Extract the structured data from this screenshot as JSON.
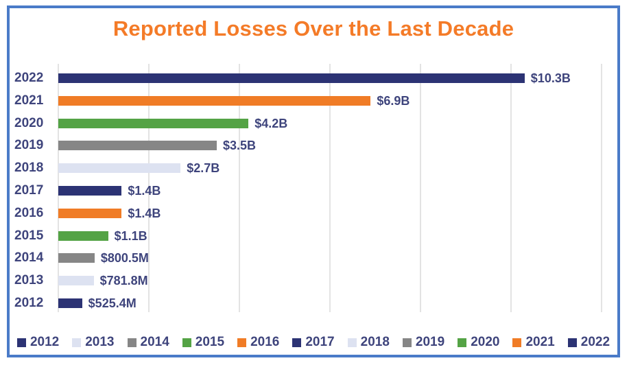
{
  "title": "Reported Losses Over the Last Decade",
  "colors": {
    "title_orange": "#f47b28",
    "frame_border_blue": "#4a7bc8",
    "text_navy": "#3e447c",
    "gridline": "#e3e3e3",
    "palette": {
      "navy": "#2c3374",
      "lavender": "#dde2f1",
      "gray": "#868686",
      "green": "#54a345",
      "orange": "#f07c26"
    }
  },
  "chart_data": {
    "type": "bar",
    "orientation": "horizontal",
    "title": "Reported Losses Over the Last Decade",
    "categories": [
      "2022",
      "2021",
      "2020",
      "2019",
      "2018",
      "2017",
      "2016",
      "2015",
      "2014",
      "2013",
      "2012"
    ],
    "values_billions": [
      10.3,
      6.9,
      4.2,
      3.5,
      2.7,
      1.4,
      1.4,
      1.1,
      0.8005,
      0.7818,
      0.5254
    ],
    "value_labels": [
      "$10.3B",
      "$6.9B",
      "$4.2B",
      "$3.5B",
      "$2.7B",
      "$1.4B",
      "$1.4B",
      "$1.1B",
      "$800.5M",
      "$781.8M",
      "$525.4M"
    ],
    "bar_colors": [
      "#2c3374",
      "#f07c26",
      "#54a345",
      "#868686",
      "#dde2f1",
      "#2c3374",
      "#f07c26",
      "#54a345",
      "#868686",
      "#dde2f1",
      "#2c3374"
    ],
    "xlabel": "",
    "ylabel": "",
    "xlim_billions": [
      0,
      12
    ],
    "gridline_interval_billions": 2,
    "grid": true,
    "legend_position": "bottom",
    "legend": [
      {
        "label": "2012",
        "color": "#2c3374"
      },
      {
        "label": "2013",
        "color": "#dde2f1"
      },
      {
        "label": "2014",
        "color": "#868686"
      },
      {
        "label": "2015",
        "color": "#54a345"
      },
      {
        "label": "2016",
        "color": "#f07c26"
      },
      {
        "label": "2017",
        "color": "#2c3374"
      },
      {
        "label": "2018",
        "color": "#dde2f1"
      },
      {
        "label": "2019",
        "color": "#868686"
      },
      {
        "label": "2020",
        "color": "#54a345"
      },
      {
        "label": "2021",
        "color": "#f07c26"
      },
      {
        "label": "2022",
        "color": "#2c3374"
      }
    ]
  }
}
